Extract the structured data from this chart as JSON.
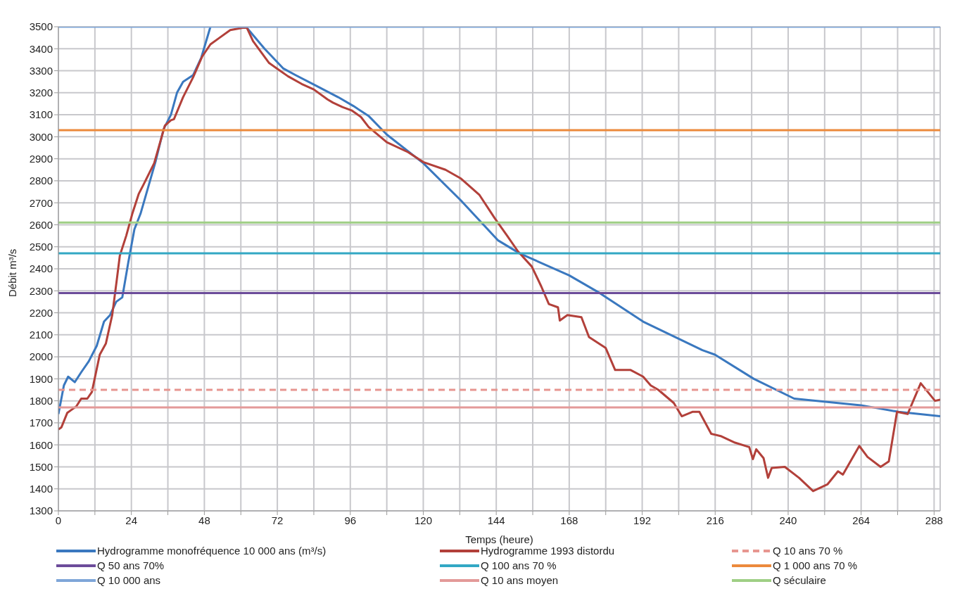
{
  "chart_data": {
    "type": "line",
    "xlabel": "Temps (heure)",
    "ylabel": "Débit m³/s",
    "xlim": [
      0,
      290
    ],
    "ylim": [
      1300,
      3500
    ],
    "xticks": [
      0,
      {
        "value": 12,
        "label": null
      },
      24,
      {
        "value": 36,
        "label": null
      },
      48,
      {
        "value": 60,
        "label": null
      },
      72,
      {
        "value": 84,
        "label": null
      },
      96,
      {
        "value": 108,
        "label": null
      },
      120,
      {
        "value": 132,
        "label": null
      },
      144,
      {
        "value": 156,
        "label": null
      },
      168,
      {
        "value": 180,
        "label": null
      },
      192,
      {
        "value": 204,
        "label": null
      },
      216,
      {
        "value": 228,
        "label": null
      },
      240,
      {
        "value": 252,
        "label": null
      },
      264,
      {
        "value": 276,
        "label": null
      },
      288
    ],
    "yticks": [
      1300,
      1400,
      1500,
      1600,
      1700,
      1800,
      1900,
      2000,
      2100,
      2200,
      2300,
      2400,
      2500,
      2600,
      2700,
      2800,
      2900,
      3000,
      3100,
      3200,
      3300,
      3400,
      3500
    ],
    "grid": true,
    "legend": "bottom",
    "marker": "none",
    "line_style": "solid",
    "series": [
      {
        "name": "Hydrogramme monofréquence 10 000 ans (m³/s)",
        "color": "#3a78bf",
        "x": [
          0,
          1.8,
          3.2,
          5.4,
          7.5,
          10,
          12.6,
          15,
          17,
          19,
          21,
          23,
          25,
          27,
          29.3,
          32,
          34.6,
          37,
          39,
          41,
          44.3,
          47,
          50,
          56,
          61.7,
          67.8,
          74,
          78,
          85,
          92,
          97,
          102,
          108,
          120,
          132.4,
          144.5,
          151.7,
          168,
          178,
          192.3,
          211.8,
          215.9,
          228.7,
          242,
          263.9,
          276.3,
          290
        ],
        "values": [
          1740,
          1870,
          1910,
          1885,
          1930,
          1980,
          2050,
          2160,
          2190,
          2250,
          2270,
          2430,
          2580,
          2650,
          2760,
          2890,
          3035,
          3100,
          3200,
          3250,
          3280,
          3360,
          3500,
          null,
          3500,
          3400,
          3310,
          3280,
          3230,
          3180,
          3140,
          3095,
          3010,
          2880,
          2710,
          2530,
          2470,
          2370,
          2290,
          2160,
          2030,
          2010,
          1900,
          1810,
          1780,
          1750,
          1730
        ]
      },
      {
        "name": "Hydrogramme 1993 distordu",
        "color": "#b2403a",
        "x": [
          0,
          1,
          2.9,
          4.4,
          5.9,
          7.5,
          9.5,
          11,
          13.6,
          15.6,
          17.7,
          19.2,
          20.2,
          22.3,
          24.3,
          26.4,
          27.9,
          31.5,
          35,
          37,
          38,
          41,
          44.3,
          47.3,
          50,
          53,
          56.5,
          60.6,
          62,
          64,
          69.3,
          71.9,
          75.5,
          80,
          84,
          88.5,
          90.3,
          93.4,
          96.4,
          99.5,
          102,
          108,
          115,
          120,
          127.3,
          132.4,
          138.5,
          143.5,
          147.6,
          151.1,
          155.7,
          158.8,
          161.3,
          164.3,
          164.9,
          167.4,
          172,
          174.5,
          180,
          183.1,
          188.2,
          192.3,
          194.8,
          197.3,
          202.4,
          205,
          208.5,
          210.8,
          214.7,
          217.8,
          222.5,
          227.2,
          228.4,
          229.5,
          231.9,
          233.4,
          234.6,
          238.9,
          243.6,
          248.2,
          252.9,
          256.4,
          258,
          263.4,
          266.1,
          270.4,
          273.1,
          275.8,
          279.3,
          283.6,
          288.3,
          290
        ],
        "values": [
          1670,
          1680,
          1745,
          1760,
          1775,
          1810,
          1810,
          1840,
          2010,
          2060,
          2190,
          2350,
          2460,
          2550,
          2650,
          2740,
          2780,
          2880,
          3050,
          3075,
          3080,
          3180,
          3270,
          3365,
          3420,
          3450,
          3485,
          3495,
          3495,
          3435,
          3335,
          3310,
          3275,
          3240,
          3215,
          3170,
          3155,
          3135,
          3120,
          3090,
          3045,
          2975,
          2930,
          2885,
          2850,
          2810,
          2735,
          2630,
          2550,
          2480,
          2410,
          2320,
          2240,
          2225,
          2165,
          2190,
          2180,
          2090,
          2040,
          1940,
          1940,
          1910,
          1870,
          1850,
          1790,
          1730,
          1750,
          1750,
          1650,
          1640,
          1610,
          1590,
          1535,
          1580,
          1540,
          1450,
          1495,
          1500,
          1450,
          1390,
          1420,
          1480,
          1465,
          1595,
          1545,
          1500,
          1525,
          1750,
          1740,
          1880,
          1800,
          1805
        ]
      },
      {
        "name": "Q 10 ans 70 %",
        "color": "#e79690",
        "line_style": "dashed",
        "x": [
          0,
          290
        ],
        "values": [
          1850,
          1850
        ]
      },
      {
        "name": "Q 50 ans 70%",
        "color": "#6c4c9a",
        "x": [
          0,
          290
        ],
        "values": [
          2290,
          2290
        ]
      },
      {
        "name": "Q 100 ans 70 %",
        "color": "#33a8c4",
        "x": [
          0,
          290
        ],
        "values": [
          2470,
          2470
        ]
      },
      {
        "name": "Q 1 000 ans 70 %",
        "color": "#ec8a3c",
        "x": [
          0,
          290
        ],
        "values": [
          3030,
          3030
        ]
      },
      {
        "name": "Q 10 000 ans",
        "color": "#7fa6d8",
        "x": [
          0,
          290
        ],
        "values": [
          3500,
          3500
        ]
      },
      {
        "name": "Q 10 ans moyen",
        "color": "#e39a99",
        "x": [
          0,
          290
        ],
        "values": [
          1770,
          1770
        ]
      },
      {
        "name": "Q séculaire",
        "color": "#9fcf85",
        "x": [
          0,
          290
        ],
        "values": [
          2610,
          2610
        ]
      }
    ]
  }
}
